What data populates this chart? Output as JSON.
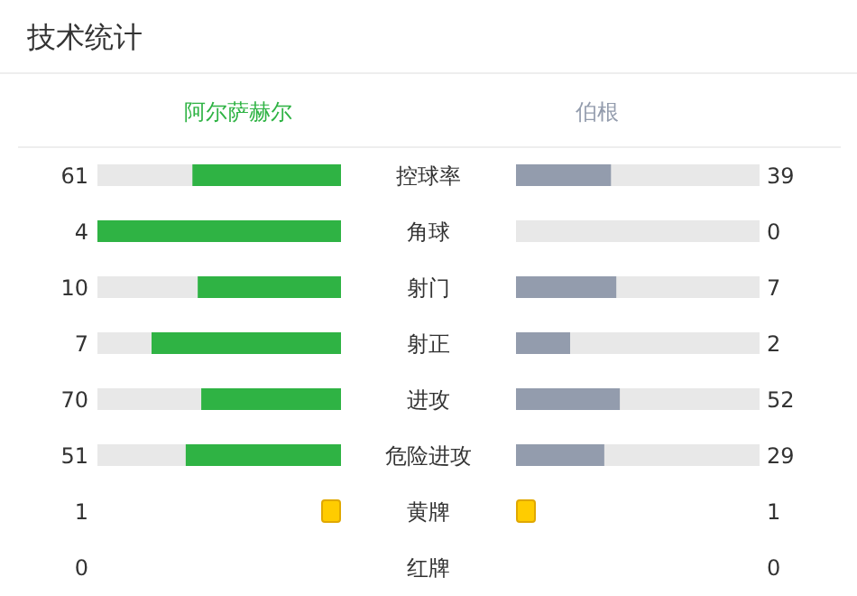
{
  "chart_data": {
    "type": "other",
    "title": "技术统计",
    "categories": [
      "控球率",
      "角球",
      "射门",
      "射正",
      "进攻",
      "危险进攻",
      "黄牌",
      "红牌"
    ],
    "data_labels": true,
    "series": [
      {
        "name": "阿尔萨赫尔",
        "color": "#2fb344",
        "values": [
          61,
          4,
          10,
          7,
          70,
          51,
          1,
          0
        ],
        "colors": [
          "#2fb344",
          "#2fb344",
          "#2fb344",
          "#2fb344",
          "#2fb344",
          "#2fb344",
          "#ffcc00",
          "#e53935"
        ]
      },
      {
        "name": "伯根",
        "color": "#939cad",
        "values": [
          39,
          0,
          7,
          2,
          52,
          29,
          1,
          0
        ],
        "colors": [
          "#939cad",
          "#939cad",
          "#939cad",
          "#939cad",
          "#939cad",
          "#939cad",
          "#ffcc00",
          "#e53935"
        ]
      }
    ]
  }
}
